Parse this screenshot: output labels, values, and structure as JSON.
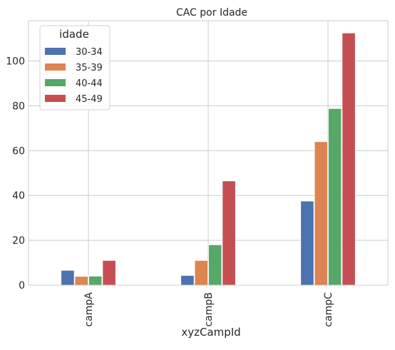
{
  "chart_data": {
    "type": "bar",
    "title": "CAC por Idade",
    "xlabel": "xyzCampId",
    "ylabel": "",
    "categories": [
      "campA",
      "campB",
      "campC"
    ],
    "ylim": [
      0,
      118
    ],
    "yticks": [
      0,
      20,
      40,
      60,
      80,
      100
    ],
    "grid": true,
    "legend": {
      "title": "idade",
      "placement": "top-left"
    },
    "series": [
      {
        "name": "30-34",
        "color": "#4c72b0",
        "values": [
          6.6,
          4.3,
          37.5
        ]
      },
      {
        "name": "35-39",
        "color": "#dd8452",
        "values": [
          3.9,
          11.0,
          64.0
        ]
      },
      {
        "name": "40-44",
        "color": "#55a868",
        "values": [
          4.0,
          18.0,
          78.8
        ]
      },
      {
        "name": "45-49",
        "color": "#c44e52",
        "values": [
          11.0,
          46.5,
          112.5
        ]
      }
    ]
  }
}
